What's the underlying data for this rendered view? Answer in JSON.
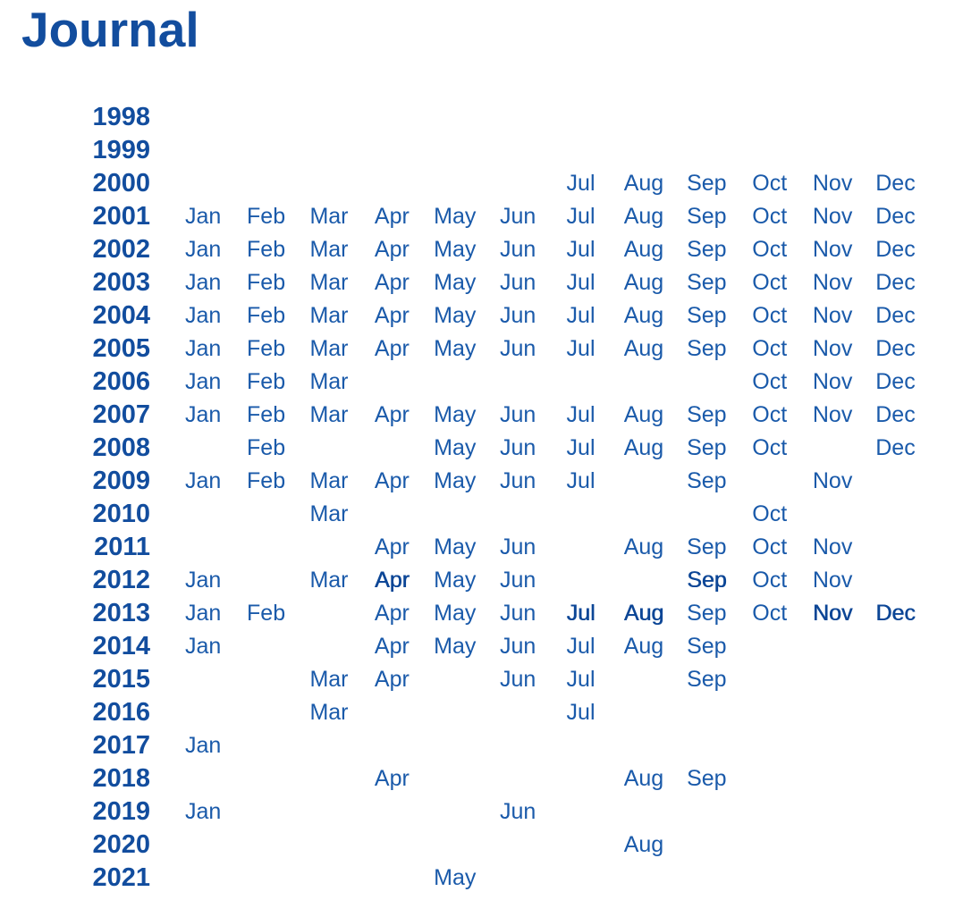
{
  "page": {
    "title": "Journal"
  },
  "colors": {
    "title": "#124d9e",
    "year_label": "#124d9e",
    "month_link": "#1a5aaa",
    "month_link_emphasis": "#0c4696",
    "background": "#ffffff"
  },
  "calendar": {
    "months_order": [
      "Jan",
      "Feb",
      "Mar",
      "Apr",
      "May",
      "Jun",
      "Jul",
      "Aug",
      "Sep",
      "Oct",
      "Nov",
      "Dec"
    ],
    "rows": [
      {
        "year": "1998",
        "months": []
      },
      {
        "year": "1999",
        "months": []
      },
      {
        "year": "2000",
        "months": [
          "Jul",
          "Aug",
          "Sep",
          "Oct",
          "Nov",
          "Dec"
        ]
      },
      {
        "year": "2001",
        "months": [
          "Jan",
          "Feb",
          "Mar",
          "Apr",
          "May",
          "Jun",
          "Jul",
          "Aug",
          "Sep",
          "Oct",
          "Nov",
          "Dec"
        ]
      },
      {
        "year": "2002",
        "months": [
          "Jan",
          "Feb",
          "Mar",
          "Apr",
          "May",
          "Jun",
          "Jul",
          "Aug",
          "Sep",
          "Oct",
          "Nov",
          "Dec"
        ]
      },
      {
        "year": "2003",
        "months": [
          "Jan",
          "Feb",
          "Mar",
          "Apr",
          "May",
          "Jun",
          "Jul",
          "Aug",
          "Sep",
          "Oct",
          "Nov",
          "Dec"
        ]
      },
      {
        "year": "2004",
        "months": [
          "Jan",
          "Feb",
          "Mar",
          "Apr",
          "May",
          "Jun",
          "Jul",
          "Aug",
          "Sep",
          "Oct",
          "Nov",
          "Dec"
        ]
      },
      {
        "year": "2005",
        "months": [
          "Jan",
          "Feb",
          "Mar",
          "Apr",
          "May",
          "Jun",
          "Jul",
          "Aug",
          "Sep",
          "Oct",
          "Nov",
          "Dec"
        ]
      },
      {
        "year": "2006",
        "months": [
          "Jan",
          "Feb",
          "Mar",
          "Oct",
          "Nov",
          "Dec"
        ]
      },
      {
        "year": "2007",
        "months": [
          "Jan",
          "Feb",
          "Mar",
          "Apr",
          "May",
          "Jun",
          "Jul",
          "Aug",
          "Sep",
          "Oct",
          "Nov",
          "Dec"
        ]
      },
      {
        "year": "2008",
        "months": [
          "Feb",
          "May",
          "Jun",
          "Jul",
          "Aug",
          "Sep",
          "Oct",
          "Dec"
        ]
      },
      {
        "year": "2009",
        "months": [
          "Jan",
          "Feb",
          "Mar",
          "Apr",
          "May",
          "Jun",
          "Jul",
          "Sep",
          "Nov"
        ]
      },
      {
        "year": "2010",
        "months": [
          "Mar",
          "Oct"
        ]
      },
      {
        "year": "2011",
        "months": [
          "Apr",
          "May",
          "Jun",
          "Aug",
          "Sep",
          "Oct",
          "Nov"
        ]
      },
      {
        "year": "2012",
        "months": [
          "Jan",
          "Mar",
          "Apr",
          "May",
          "Jun",
          "Sep",
          "Oct",
          "Nov"
        ],
        "emphasis": [
          "Apr",
          "Sep"
        ]
      },
      {
        "year": "2013",
        "months": [
          "Jan",
          "Feb",
          "Apr",
          "May",
          "Jun",
          "Jul",
          "Aug",
          "Sep",
          "Oct",
          "Nov",
          "Dec"
        ],
        "emphasis": [
          "Jul",
          "Aug",
          "Nov",
          "Dec"
        ]
      },
      {
        "year": "2014",
        "months": [
          "Jan",
          "Apr",
          "May",
          "Jun",
          "Jul",
          "Aug",
          "Sep"
        ]
      },
      {
        "year": "2015",
        "months": [
          "Mar",
          "Apr",
          "Jun",
          "Jul",
          "Sep"
        ]
      },
      {
        "year": "2016",
        "months": [
          "Mar",
          "Jul"
        ]
      },
      {
        "year": "2017",
        "months": [
          "Jan"
        ]
      },
      {
        "year": "2018",
        "months": [
          "Apr",
          "Aug",
          "Sep"
        ]
      },
      {
        "year": "2019",
        "months": [
          "Jan",
          "Jun"
        ]
      },
      {
        "year": "2020",
        "months": [
          "Aug"
        ]
      },
      {
        "year": "2021",
        "months": [
          "May"
        ]
      }
    ]
  }
}
